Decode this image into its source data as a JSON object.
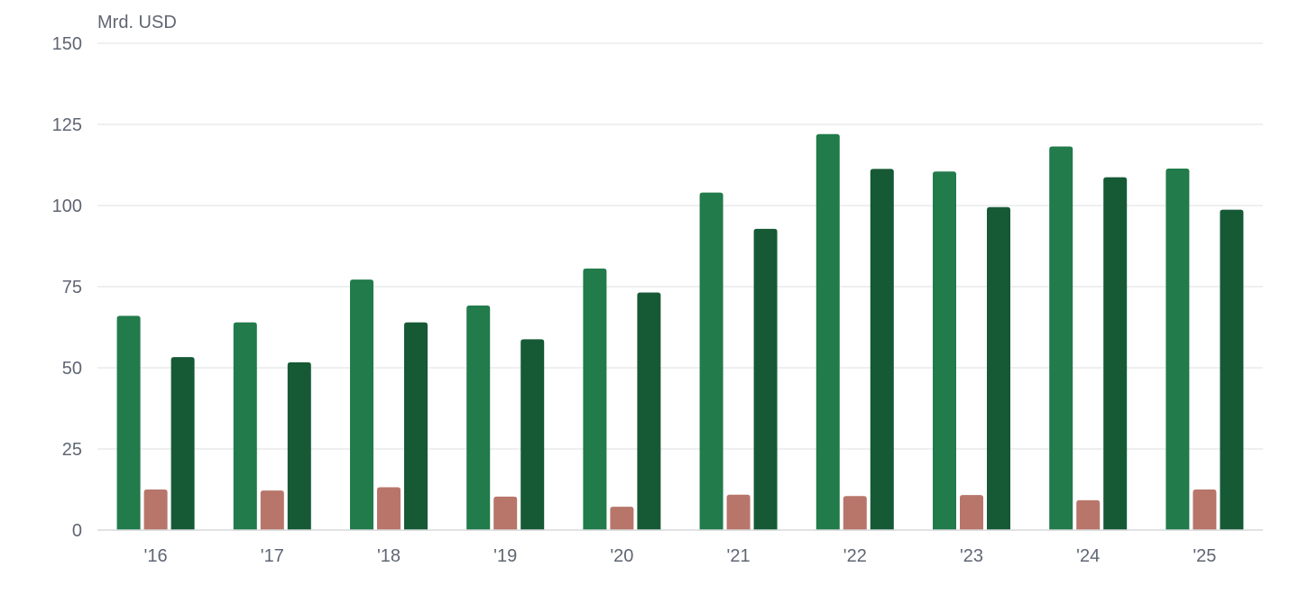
{
  "chart_data": {
    "type": "bar",
    "ylabel": "Mrd. USD",
    "ylim": [
      0,
      150
    ],
    "yticks": [
      0,
      25,
      50,
      75,
      100,
      125,
      150
    ],
    "grid": true,
    "legend": "none",
    "categories": [
      "'16",
      "'17",
      "'18",
      "'19",
      "'20",
      "'21",
      "'22",
      "'23",
      "'24",
      "'25"
    ],
    "series": [
      {
        "color": "#217b4a",
        "values": [
          66,
          64,
          77.2,
          69.2,
          80.6,
          104,
          122,
          110.5,
          118.2,
          111.4
        ]
      },
      {
        "color": "#b8766a",
        "values": [
          12.5,
          12.2,
          13.2,
          10.3,
          7.2,
          10.9,
          10.5,
          10.8,
          9.2,
          12.5
        ]
      },
      {
        "color": "#165a35",
        "values": [
          53.3,
          51.7,
          64,
          58.8,
          73.2,
          92.8,
          111.3,
          99.5,
          108.7,
          98.7
        ]
      }
    ]
  }
}
